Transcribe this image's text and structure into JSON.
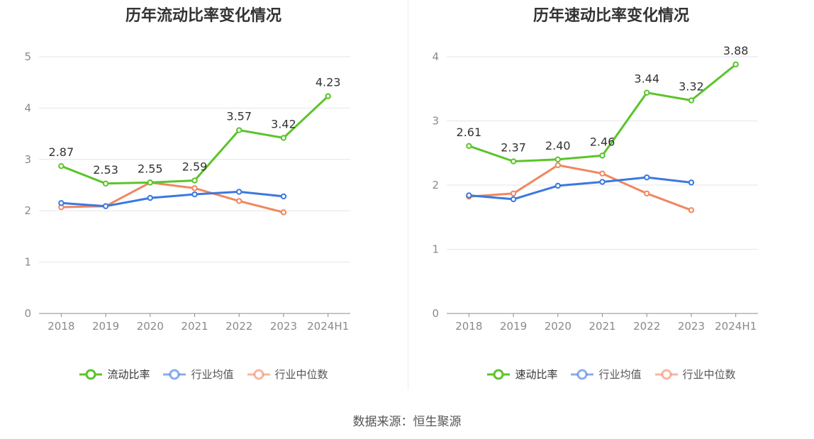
{
  "footer": {
    "source": "数据来源：恒生聚源"
  },
  "chart_data": [
    {
      "type": "line",
      "title": "历年流动比率变化情况",
      "categories": [
        "2018",
        "2019",
        "2020",
        "2021",
        "2022",
        "2023",
        "2024H1"
      ],
      "yticks": [
        0,
        1,
        2,
        3,
        4,
        5
      ],
      "ylim": [
        0,
        5
      ],
      "grid": true,
      "legend_position": "bottom",
      "series": [
        {
          "name": "流动比率",
          "color": "#5bc42b",
          "values": [
            2.87,
            2.53,
            2.55,
            2.59,
            3.57,
            3.42,
            4.23
          ],
          "labels": [
            "2.87",
            "2.53",
            "2.55",
            "2.59",
            "3.57",
            "3.42",
            "4.23"
          ]
        },
        {
          "name": "行业均值",
          "color": "#3b78e0",
          "values": [
            2.15,
            2.09,
            2.25,
            2.32,
            2.37,
            2.28,
            null
          ]
        },
        {
          "name": "行业中位数",
          "color": "#f0875f",
          "values": [
            2.07,
            2.09,
            2.55,
            2.44,
            2.19,
            1.97,
            null
          ]
        }
      ]
    },
    {
      "type": "line",
      "title": "历年速动比率变化情况",
      "categories": [
        "2018",
        "2019",
        "2020",
        "2021",
        "2022",
        "2023",
        "2024H1"
      ],
      "yticks": [
        0,
        1,
        2,
        3,
        4
      ],
      "ylim": [
        0,
        4
      ],
      "grid": true,
      "legend_position": "bottom",
      "series": [
        {
          "name": "速动比率",
          "color": "#5bc42b",
          "values": [
            2.61,
            2.37,
            2.4,
            2.46,
            3.44,
            3.32,
            3.88
          ],
          "labels": [
            "2.61",
            "2.37",
            "2.40",
            "2.46",
            "3.44",
            "3.32",
            "3.88"
          ]
        },
        {
          "name": "行业均值",
          "color": "#3b78e0",
          "values": [
            1.84,
            1.78,
            1.99,
            2.05,
            2.12,
            2.04,
            null
          ]
        },
        {
          "name": "行业中位数",
          "color": "#f0875f",
          "values": [
            1.82,
            1.87,
            2.31,
            2.18,
            1.87,
            1.61,
            null
          ]
        }
      ]
    }
  ]
}
